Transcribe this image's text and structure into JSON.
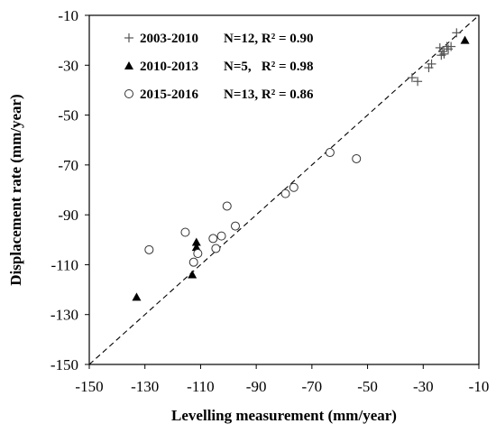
{
  "chart_data": {
    "type": "scatter",
    "xlabel": "Levelling measurement (mm/year)",
    "ylabel": "Displacement rate (mm/year)",
    "xlim": [
      -150,
      -10
    ],
    "ylim": [
      -150,
      -10
    ],
    "xticks": [
      "-150",
      "-130",
      "-110",
      "-90",
      "-70",
      "-50",
      "-30",
      "-10"
    ],
    "yticks": [
      "-10",
      "-30",
      "-50",
      "-70",
      "-90",
      "-110",
      "-130",
      "-150"
    ],
    "grid": false,
    "legend_position": "top-left",
    "reference_line": "1:1 dashed",
    "series": [
      {
        "name": "2003-2010",
        "stats": "N=12, R² = 0.90",
        "marker": "plus",
        "points": [
          {
            "x": -34.0,
            "y": -35.0
          },
          {
            "x": -32.0,
            "y": -36.5
          },
          {
            "x": -28.0,
            "y": -31.0
          },
          {
            "x": -27.0,
            "y": -29.5
          },
          {
            "x": -24.0,
            "y": -23.0
          },
          {
            "x": -23.5,
            "y": -26.0
          },
          {
            "x": -23.0,
            "y": -24.5
          },
          {
            "x": -22.5,
            "y": -25.5
          },
          {
            "x": -21.5,
            "y": -22.5
          },
          {
            "x": -21.0,
            "y": -23.5
          },
          {
            "x": -20.0,
            "y": -22.5
          },
          {
            "x": -18.0,
            "y": -17.0
          }
        ]
      },
      {
        "name": "2010-2013",
        "stats": "N=5,   R² = 0.98",
        "marker": "triangle",
        "points": [
          {
            "x": -133.0,
            "y": -123.0
          },
          {
            "x": -113.0,
            "y": -114.0
          },
          {
            "x": -111.5,
            "y": -101.0
          },
          {
            "x": -111.5,
            "y": -103.0
          },
          {
            "x": -15.0,
            "y": -20.0
          }
        ]
      },
      {
        "name": "2015-2016",
        "stats": "N=13, R² = 0.86",
        "marker": "circle",
        "points": [
          {
            "x": -128.5,
            "y": -104.0
          },
          {
            "x": -115.5,
            "y": -97.0
          },
          {
            "x": -112.5,
            "y": -109.0
          },
          {
            "x": -111.0,
            "y": -105.5
          },
          {
            "x": -105.5,
            "y": -99.5
          },
          {
            "x": -104.5,
            "y": -103.5
          },
          {
            "x": -102.5,
            "y": -98.5
          },
          {
            "x": -100.5,
            "y": -86.5
          },
          {
            "x": -97.5,
            "y": -94.5
          },
          {
            "x": -79.5,
            "y": -81.5
          },
          {
            "x": -76.5,
            "y": -79.0
          },
          {
            "x": -63.5,
            "y": -65.0
          },
          {
            "x": -54.0,
            "y": -67.5
          }
        ]
      }
    ]
  }
}
